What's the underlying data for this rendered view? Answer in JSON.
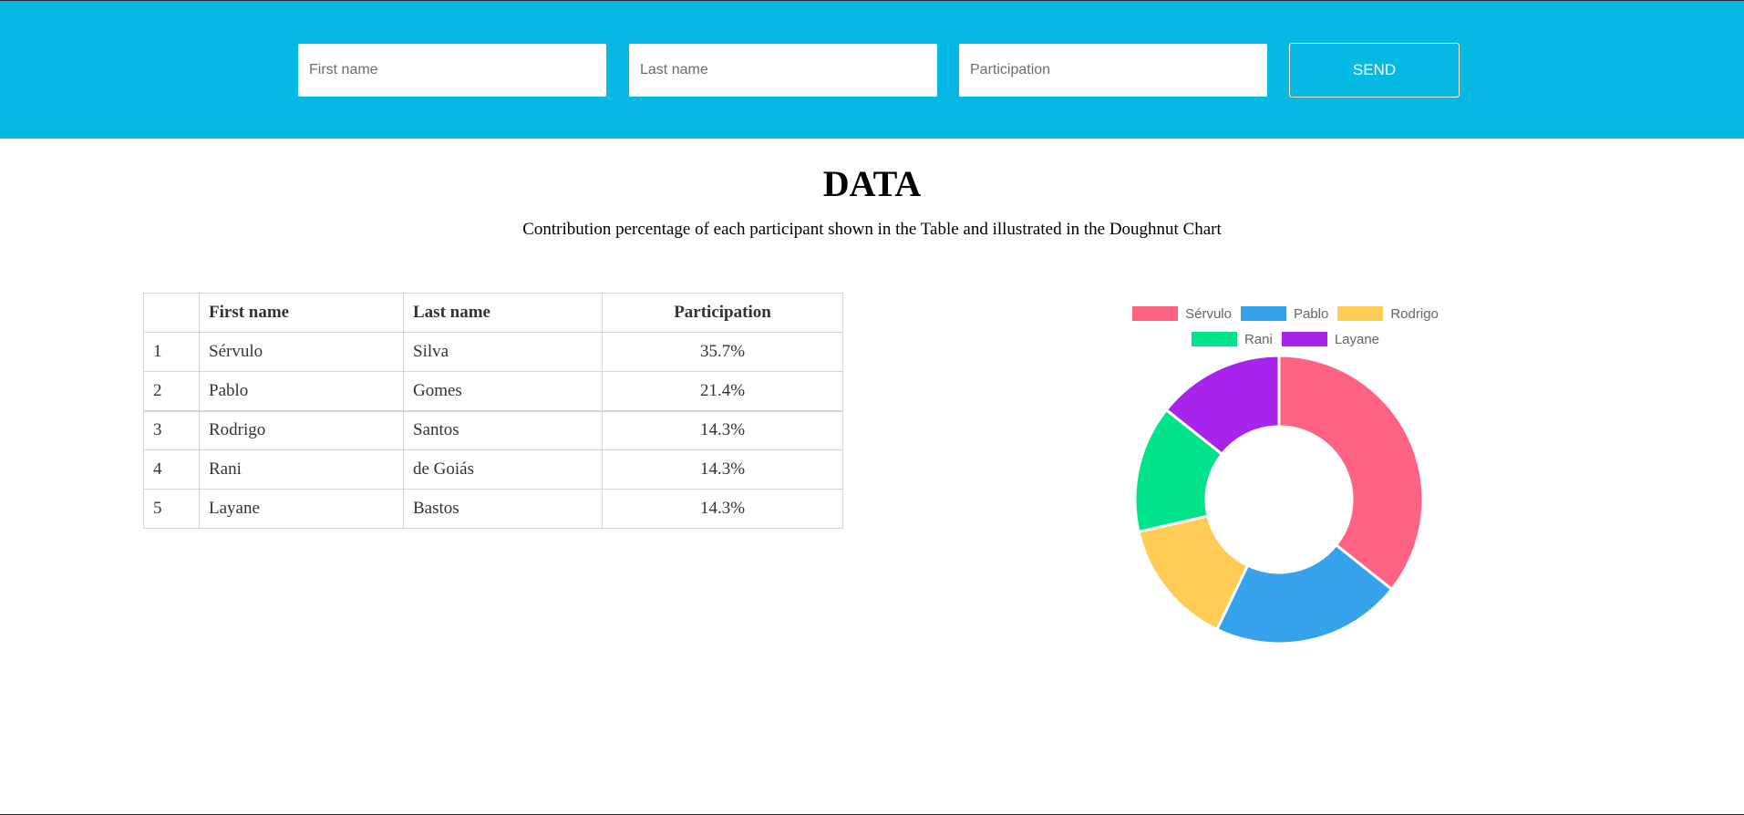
{
  "form": {
    "first_name_placeholder": "First name",
    "last_name_placeholder": "Last name",
    "participation_placeholder": "Participation",
    "send_label": "SEND"
  },
  "header": {
    "title": "DATA",
    "subtitle": "Contribution percentage of each participant shown in the Table and illustrated in the Doughnut Chart"
  },
  "table": {
    "columns": [
      "",
      "First name",
      "Last name",
      "Participation"
    ],
    "rows": [
      {
        "index": "1",
        "first": "Sérvulo",
        "last": "Silva",
        "participation": "35.7%"
      },
      {
        "index": "2",
        "first": "Pablo",
        "last": "Gomes",
        "participation": "21.4%"
      },
      {
        "index": "3",
        "first": "Rodrigo",
        "last": "Santos",
        "participation": "14.3%"
      },
      {
        "index": "4",
        "first": "Rani",
        "last": "de Goiás",
        "participation": "14.3%"
      },
      {
        "index": "5",
        "first": "Layane",
        "last": "Bastos",
        "participation": "14.3%"
      }
    ]
  },
  "colors": {
    "header_bg": "#06b8e4",
    "border": "#d6d6d6"
  },
  "chart_data": {
    "type": "doughnut",
    "categories": [
      "Sérvulo",
      "Pablo",
      "Rodrigo",
      "Rani",
      "Layane"
    ],
    "values": [
      35.7,
      21.4,
      14.3,
      14.3,
      14.3
    ],
    "colors": [
      "#ff6384",
      "#36a2eb",
      "#ffcd56",
      "#00e38a",
      "#a724ea"
    ],
    "legend_position": "top"
  }
}
